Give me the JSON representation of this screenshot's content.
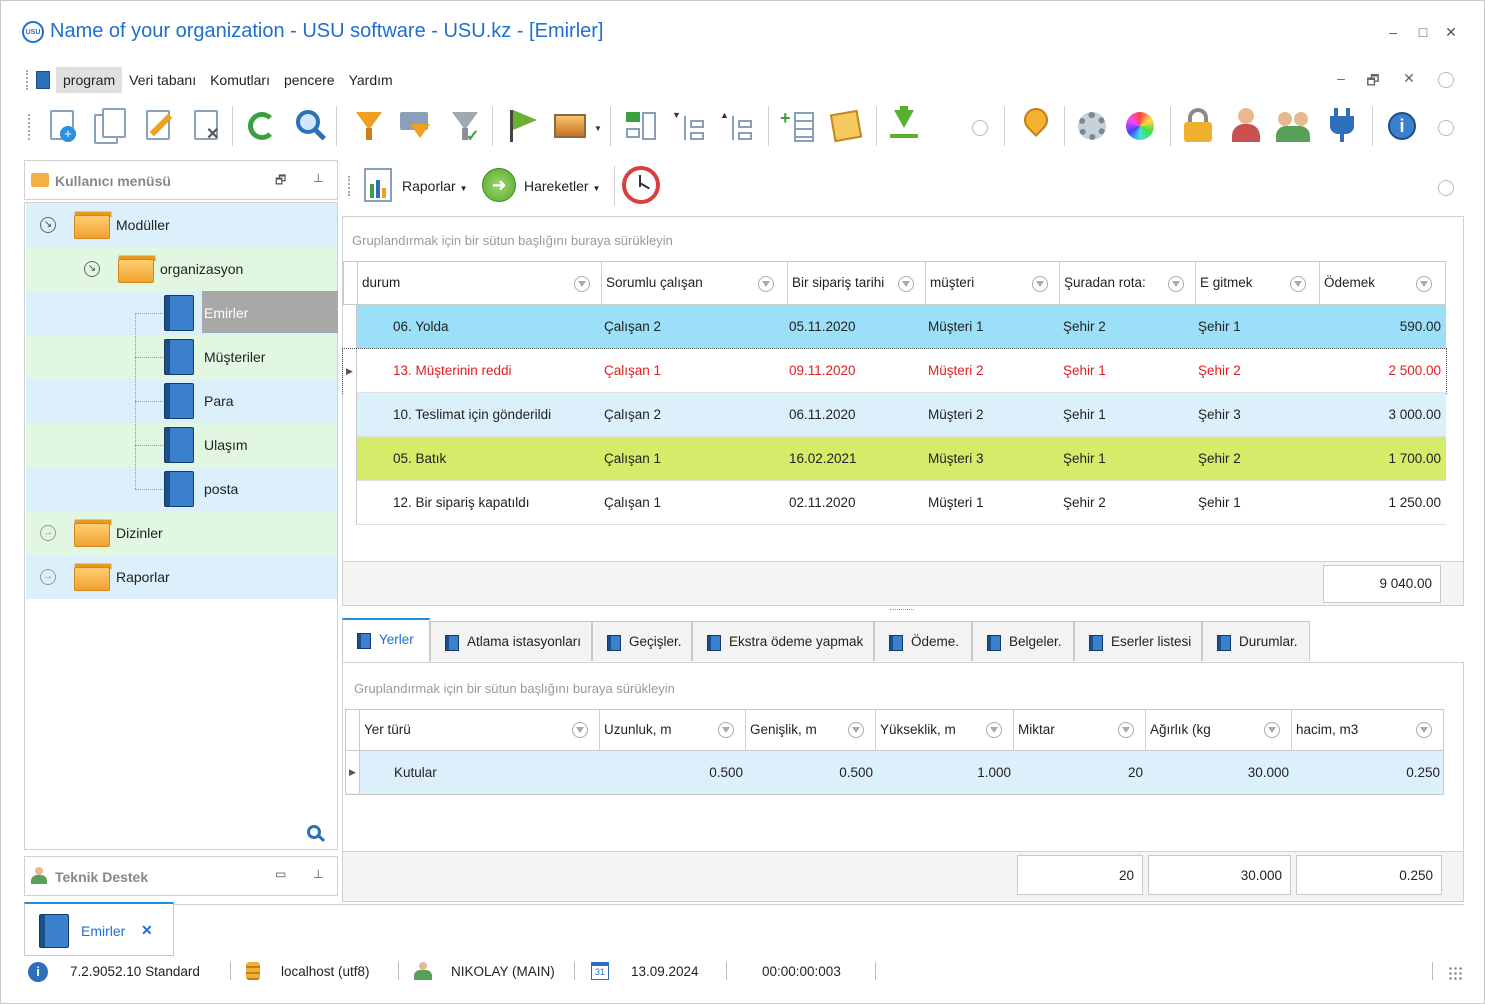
{
  "window": {
    "title": "Name of your organization - USU software - USU.kz - [Emirler]",
    "logo_text": "USU",
    "controls": [
      "–",
      "□",
      "✕"
    ]
  },
  "menu": {
    "items": [
      "program",
      "Veri tabanı",
      "Komutları",
      "pencere",
      "Yardım"
    ],
    "mdi_controls": [
      "–",
      "🗗",
      "✕"
    ]
  },
  "toolbar": {
    "icons": [
      "add-document-icon",
      "copy-document-icon",
      "edit-icon",
      "delete-icon",
      "refresh-icon",
      "search-icon",
      "filter-icon",
      "filter-format-icon",
      "filter-apply-icon",
      "flag-icon",
      "image-icon",
      "tree-expand-icon",
      "tree-collapse-up-icon",
      "tree-collapse-down-icon",
      "add-row-icon",
      "notes-icon",
      "download-icon",
      "location-icon",
      "settings-gear-icon",
      "color-wheel-icon",
      "lock-icon",
      "user-icon",
      "users-group-icon",
      "plugin-icon",
      "info-icon"
    ]
  },
  "left_panel": {
    "title": "Kullanıcı menüsü",
    "tree": [
      {
        "label": "Modüller",
        "level": 0,
        "type": "folder",
        "expanded": true
      },
      {
        "label": "organizasyon",
        "level": 1,
        "type": "folder",
        "expanded": true
      },
      {
        "label": "Emirler",
        "level": 2,
        "type": "book",
        "selected": true
      },
      {
        "label": "Müşteriler",
        "level": 2,
        "type": "book"
      },
      {
        "label": "Para",
        "level": 2,
        "type": "book"
      },
      {
        "label": "Ulaşım",
        "level": 2,
        "type": "book"
      },
      {
        "label": "posta",
        "level": 2,
        "type": "book"
      },
      {
        "label": "Dizinler",
        "level": 0,
        "type": "folder",
        "expanded": false
      },
      {
        "label": "Raporlar",
        "level": 0,
        "type": "folder",
        "expanded": false
      }
    ],
    "bottom_title": "Teknik Destek"
  },
  "sub_toolbar": {
    "reports_label": "Raporlar",
    "actions_label": "Hareketler"
  },
  "grid1": {
    "group_hint": "Gruplandırmak için bir sütun başlığını buraya sürükleyin",
    "columns": [
      "durum",
      "Sorumlu çalışan",
      "Bir sipariş tarihi",
      "müşteri",
      "Şuradan rota:",
      "E gitmek",
      "Ödemek"
    ],
    "rows": [
      {
        "cells": [
          "06. Yolda",
          "Çalışan 2",
          "05.11.2020",
          "Müşteri 1",
          "Şehir 2",
          "Şehir 1",
          "590.00"
        ],
        "bg": "#9be0f8",
        "color": "#222222",
        "current": false
      },
      {
        "cells": [
          "13. Müşterinin reddi",
          "Çalışan 1",
          "09.11.2020",
          "Müşteri 2",
          "Şehir 1",
          "Şehir 2",
          "2 500.00"
        ],
        "bg": "#ffffff",
        "color": "#e02020",
        "current": true
      },
      {
        "cells": [
          "10. Teslimat için gönderildi",
          "Çalışan 2",
          "06.11.2020",
          "Müşteri 2",
          "Şehir 1",
          "Şehir 3",
          "3 000.00"
        ],
        "bg": "#dcf0fc",
        "color": "#222222",
        "current": false
      },
      {
        "cells": [
          "05. Batık",
          "Çalışan 1",
          "16.02.2021",
          "Müşteri 3",
          "Şehir 1",
          "Şehir 2",
          "1 700.00"
        ],
        "bg": "#d4ec6a",
        "color": "#222222",
        "current": false
      },
      {
        "cells": [
          "12. Bir sipariş kapatıldı",
          "Çalışan 1",
          "02.11.2020",
          "Müşteri 1",
          "Şehir 2",
          "Şehir 1",
          "1 250.00"
        ],
        "bg": "#ffffff",
        "color": "#222222",
        "current": false
      }
    ],
    "total": "9 040.00"
  },
  "tabs": [
    {
      "label": "Yerler",
      "active": true
    },
    {
      "label": "Atlama istasyonları",
      "active": false
    },
    {
      "label": "Geçişler.",
      "active": false
    },
    {
      "label": "Ekstra ödeme yapmak",
      "active": false
    },
    {
      "label": "Ödeme.",
      "active": false
    },
    {
      "label": "Belgeler.",
      "active": false
    },
    {
      "label": "Eserler listesi",
      "active": false
    },
    {
      "label": "Durumlar.",
      "active": false
    }
  ],
  "grid2": {
    "group_hint": "Gruplandırmak için bir sütun başlığını buraya sürükleyin",
    "columns": [
      "Yer türü",
      "Uzunluk, m",
      "Genişlik, m",
      "Yükseklik, m",
      "Miktar",
      "Ağırlık (kg",
      "hacim, m3"
    ],
    "rows": [
      {
        "cells": [
          "Kutular",
          "0.500",
          "0.500",
          "1.000",
          "20",
          "30.000",
          "0.250"
        ]
      }
    ],
    "totals": [
      "20",
      "30.000",
      "0.250"
    ]
  },
  "doc_tab": {
    "label": "Emirler",
    "close": "✕"
  },
  "status": {
    "version": "7.2.9052.10 Standard",
    "db": "localhost (utf8)",
    "user": "NIKOLAY (MAIN)",
    "calendar_day": "31",
    "date": "13.09.2024",
    "timer": "00:00:00:003"
  },
  "colors": {
    "accent": "#1e6fd0",
    "tree_blue": "#dcf0fc",
    "tree_green": "#e2f7e2",
    "row_cyan": "#9be0f8",
    "row_green": "#d4ec6a",
    "row_red_text": "#e02020"
  }
}
